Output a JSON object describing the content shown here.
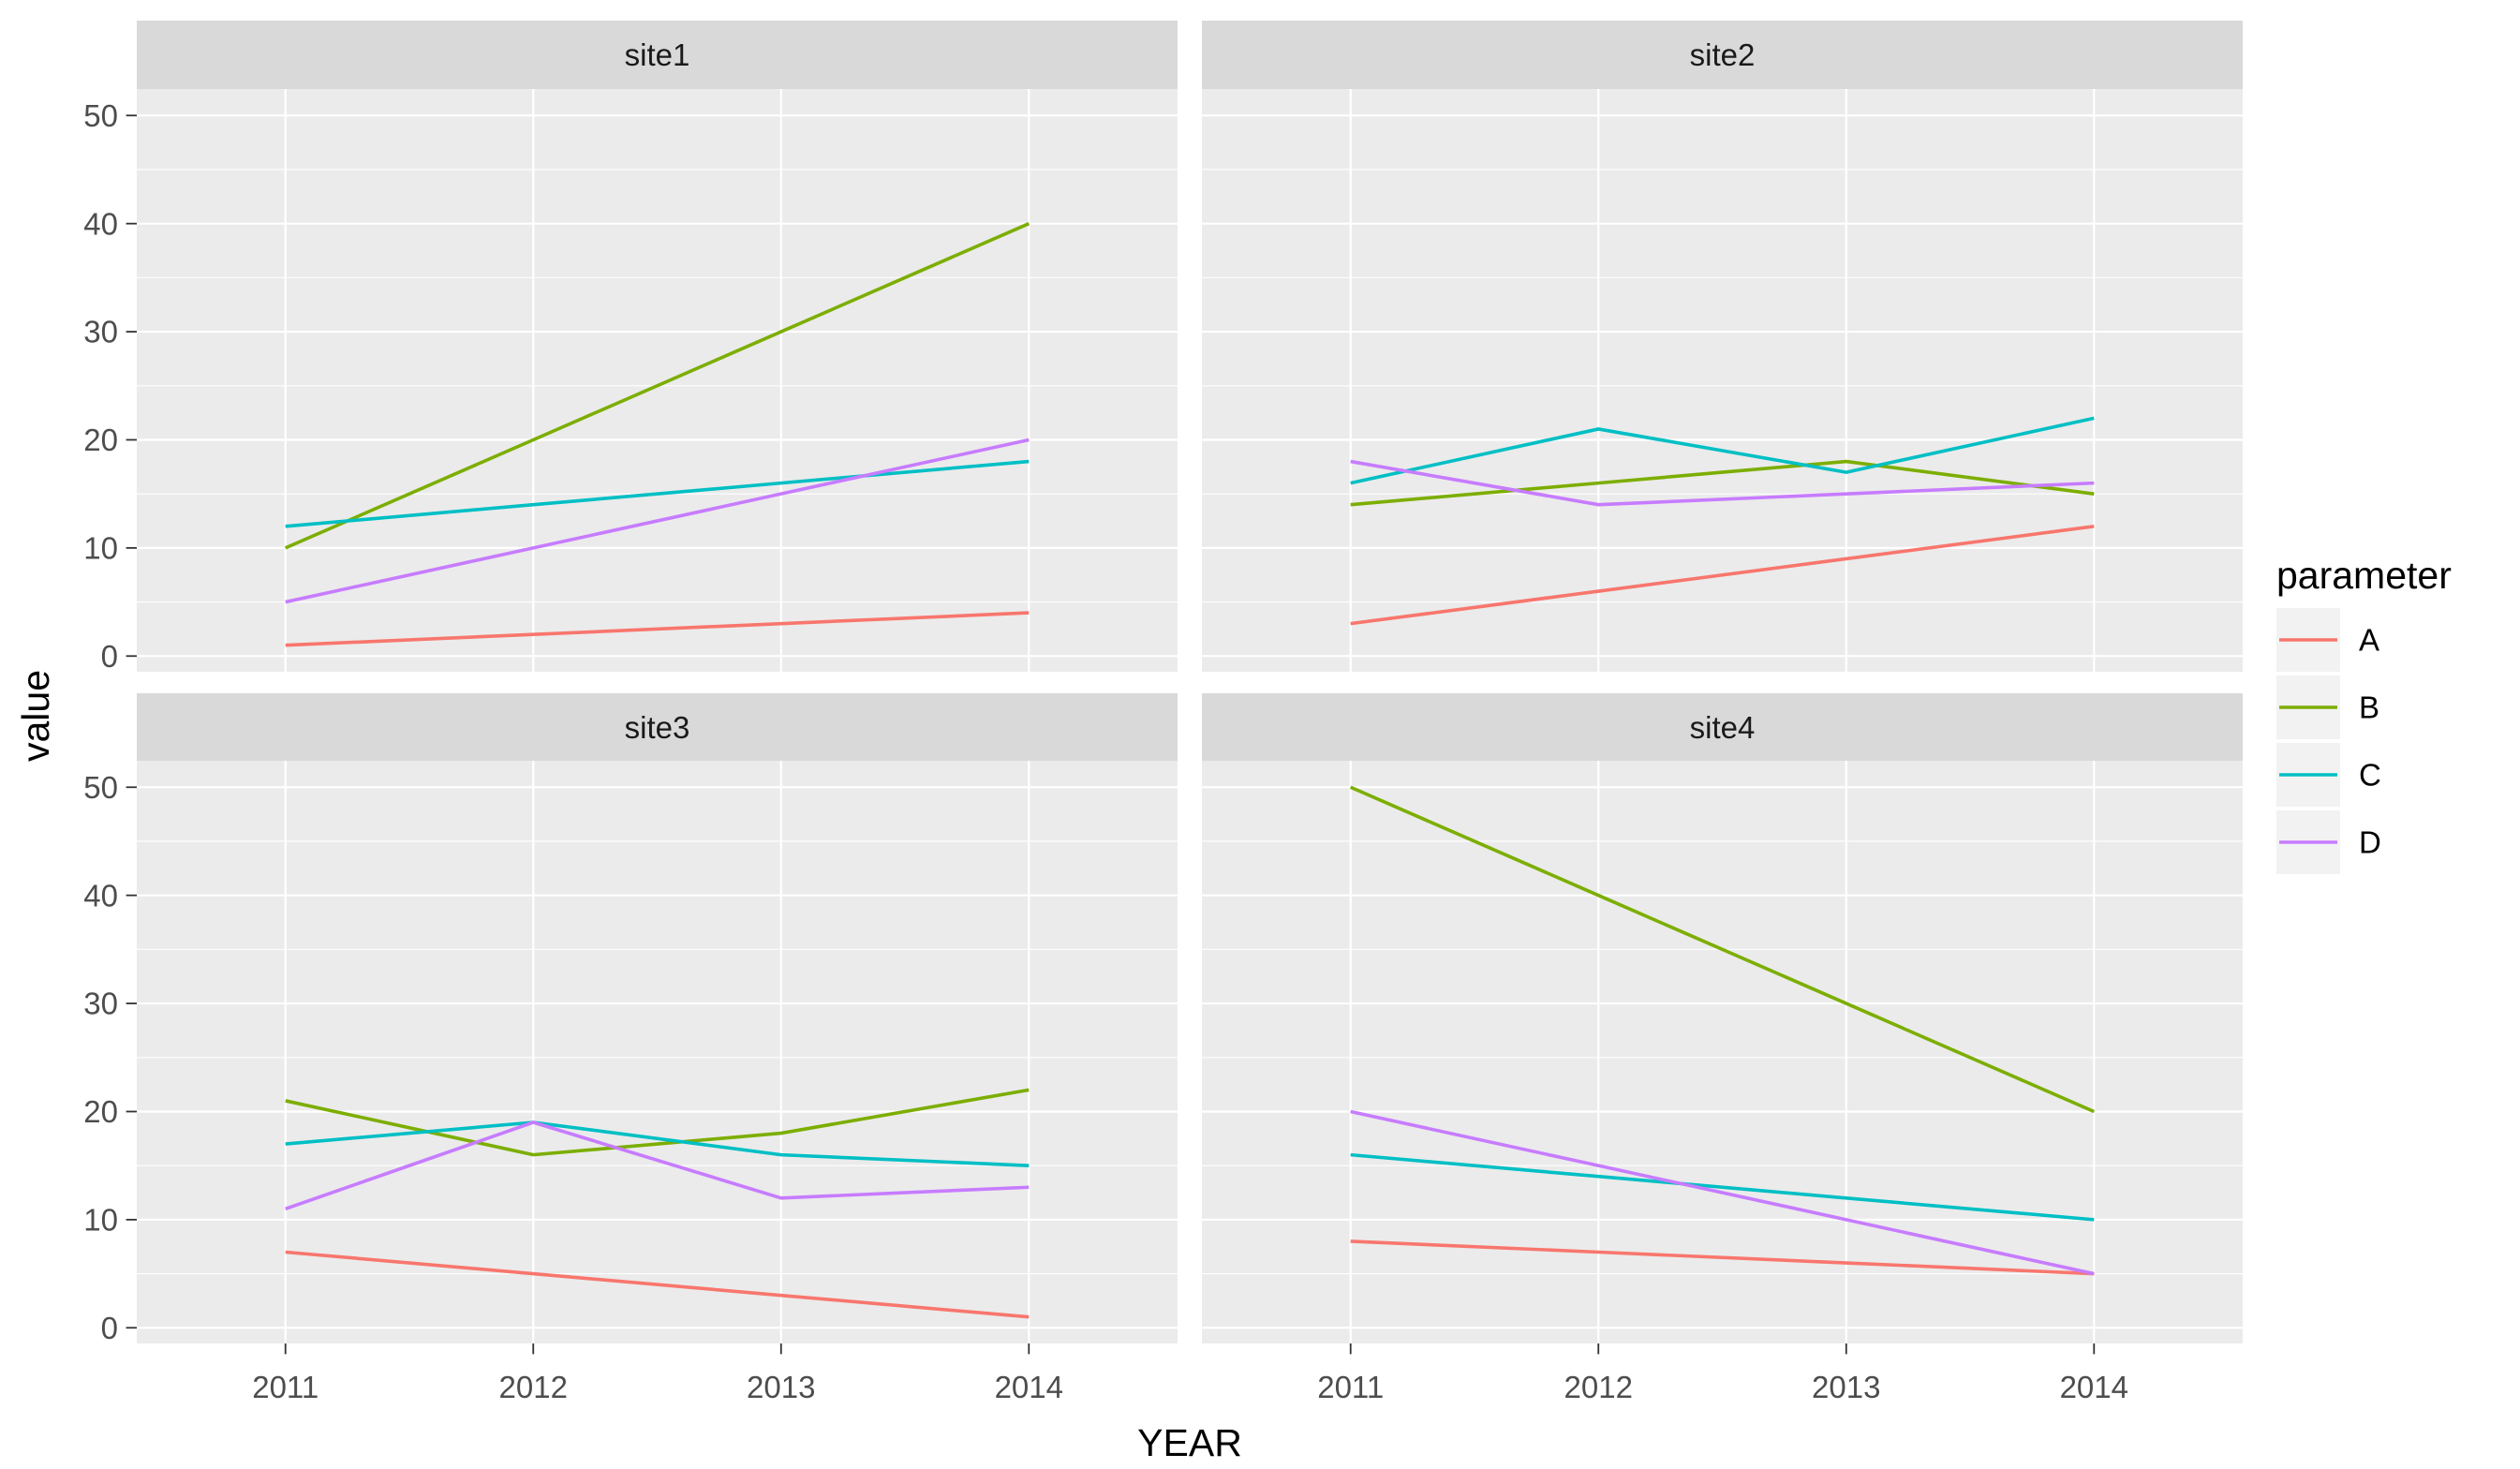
{
  "figure": {
    "background": "#FFFFFF",
    "panel_background": "#EBEBEB",
    "strip_background": "#D9D9D9",
    "grid_color": "#FFFFFF",
    "tick_label_color": "#4D4D4D",
    "tick_mark_color": "#333333",
    "strip_text_color": "#1A1A1A",
    "title_color": "#000000"
  },
  "axes": {
    "x_title": "YEAR",
    "y_title": "value",
    "x_tick_labels": [
      "2011",
      "2012",
      "2013",
      "2014"
    ],
    "y_tick_labels": [
      "0",
      "10",
      "20",
      "30",
      "40",
      "50"
    ]
  },
  "legend": {
    "title": "parameter",
    "entries": [
      {
        "label": "A",
        "color": "#F8766D"
      },
      {
        "label": "B",
        "color": "#7CAE00"
      },
      {
        "label": "C",
        "color": "#00BFC4"
      },
      {
        "label": "D",
        "color": "#C77CFF"
      }
    ]
  },
  "chart_data": {
    "type": "line",
    "x": [
      2011,
      2012,
      2013,
      2014
    ],
    "xlabel": "YEAR",
    "ylabel": "value",
    "ylim": [
      -1.45,
      52.45
    ],
    "yticks": [
      0,
      10,
      20,
      30,
      40,
      50
    ],
    "yminor": [
      5,
      15,
      25,
      35,
      45
    ],
    "grid": "on",
    "legend_title": "parameter",
    "legend_position": "right",
    "series_colors": {
      "A": "#F8766D",
      "B": "#7CAE00",
      "C": "#00BFC4",
      "D": "#C77CFF"
    },
    "facets": [
      {
        "title": "site1",
        "series": [
          {
            "name": "A",
            "values": [
              1,
              2,
              3,
              4
            ]
          },
          {
            "name": "B",
            "values": [
              10,
              20,
              30,
              40
            ]
          },
          {
            "name": "C",
            "values": [
              12,
              14,
              16,
              18
            ]
          },
          {
            "name": "D",
            "values": [
              5,
              10,
              15,
              20
            ]
          }
        ]
      },
      {
        "title": "site2",
        "series": [
          {
            "name": "A",
            "values": [
              3,
              6,
              9,
              12
            ]
          },
          {
            "name": "B",
            "values": [
              14,
              16,
              18,
              15
            ]
          },
          {
            "name": "C",
            "values": [
              16,
              21,
              17,
              22
            ]
          },
          {
            "name": "D",
            "values": [
              18,
              14,
              15,
              16
            ]
          }
        ]
      },
      {
        "title": "site3",
        "series": [
          {
            "name": "A",
            "values": [
              7,
              5,
              3,
              1
            ]
          },
          {
            "name": "B",
            "values": [
              21,
              16,
              18,
              22
            ]
          },
          {
            "name": "C",
            "values": [
              17,
              19,
              16,
              15
            ]
          },
          {
            "name": "D",
            "values": [
              11,
              19,
              12,
              13
            ]
          }
        ]
      },
      {
        "title": "site4",
        "series": [
          {
            "name": "A",
            "values": [
              8,
              7,
              6,
              5
            ]
          },
          {
            "name": "B",
            "values": [
              50,
              40,
              30,
              20
            ]
          },
          {
            "name": "C",
            "values": [
              16,
              14,
              12,
              10
            ]
          },
          {
            "name": "D",
            "values": [
              20,
              15,
              10,
              5
            ]
          }
        ]
      }
    ]
  }
}
